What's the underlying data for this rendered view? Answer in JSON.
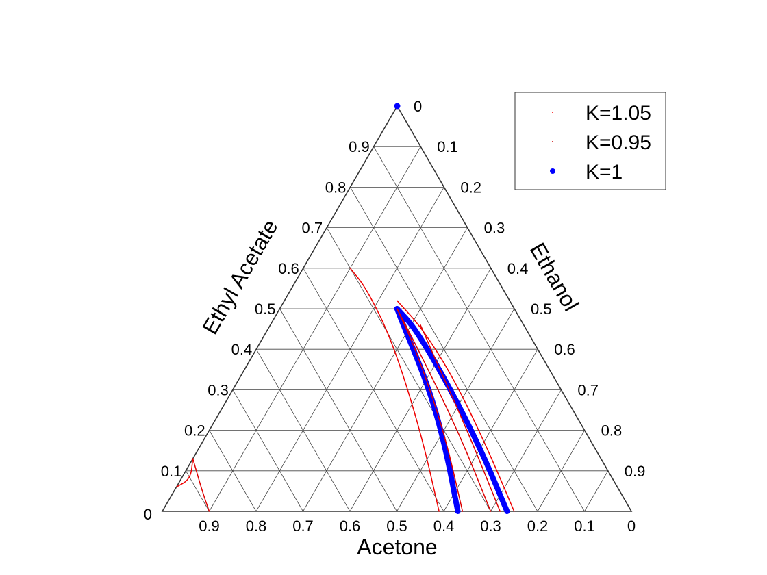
{
  "chart_data": {
    "type": "ternary",
    "axes": {
      "bottom": {
        "label": "Acetone",
        "ticks": [
          "0.9",
          "0.8",
          "0.7",
          "0.6",
          "0.5",
          "0.4",
          "0.3",
          "0.2",
          "0.1",
          "0"
        ]
      },
      "left": {
        "label": "Ethyl Acetate",
        "ticks": [
          "0.1",
          "0.2",
          "0.3",
          "0.4",
          "0.5",
          "0.6",
          "0.7",
          "0.8",
          "0.9"
        ]
      },
      "right": {
        "label": "Ethanol",
        "ticks": [
          "0",
          "0.1",
          "0.2",
          "0.3",
          "0.4",
          "0.5",
          "0.6",
          "0.7",
          "0.8",
          "0.9"
        ]
      },
      "origin_label": "0"
    },
    "grid": true,
    "legend": {
      "position": "top-right",
      "entries": [
        {
          "label": "K=1.05",
          "color": "#ff0000",
          "marker": "dot-small"
        },
        {
          "label": "K=0.95",
          "color": "#cc0000",
          "marker": "dot-small"
        },
        {
          "label": "K=1",
          "color": "#0000ff",
          "marker": "dot"
        }
      ]
    },
    "series": [
      {
        "name": "K=1",
        "color": "#0000ff",
        "width": 8,
        "points": [
          [
            0.37,
            0
          ],
          [
            0.32,
            0.15
          ],
          [
            0.28,
            0.3
          ],
          [
            0.255,
            0.47
          ],
          [
            0.25,
            0.5
          ]
        ]
      },
      {
        "name": "K=1",
        "color": "#0000ff",
        "width": 8,
        "points": [
          [
            0.265,
            0
          ],
          [
            0.245,
            0.15
          ],
          [
            0.235,
            0.3
          ],
          [
            0.235,
            0.45
          ],
          [
            0.25,
            0.5
          ]
        ]
      },
      {
        "name": "K=1",
        "color": "#0000ff",
        "width": 0,
        "marker": true,
        "points": [
          [
            0,
            1
          ]
        ]
      },
      {
        "name": "K=1.05",
        "color": "#ee0000",
        "width": 1.5,
        "points": [
          [
            0.41,
            0
          ],
          [
            0.35,
            0.2
          ],
          [
            0.3,
            0.42
          ],
          [
            0.29,
            0.55
          ],
          [
            0.3,
            0.6
          ]
        ]
      },
      {
        "name": "K=1.05",
        "color": "#ee0000",
        "width": 1.5,
        "points": [
          [
            0.25,
            0
          ],
          [
            0.23,
            0.15
          ],
          [
            0.215,
            0.32
          ],
          [
            0.22,
            0.45
          ],
          [
            0.24,
            0.52
          ]
        ]
      },
      {
        "name": "K=1.05",
        "color": "#ee0000",
        "width": 1.5,
        "points": [
          [
            0.94,
            0.06
          ],
          [
            0.9,
            0.08
          ],
          [
            0.87,
            0.13
          ]
        ]
      },
      {
        "name": "K=0.95",
        "color": "#dd0000",
        "width": 1.5,
        "points": [
          [
            0.36,
            0
          ],
          [
            0.3,
            0.2
          ],
          [
            0.26,
            0.4
          ],
          [
            0.25,
            0.5
          ]
        ]
      },
      {
        "name": "K=0.95",
        "color": "#dd0000",
        "width": 1.5,
        "points": [
          [
            0.3,
            0
          ],
          [
            0.27,
            0.2
          ],
          [
            0.255,
            0.4
          ],
          [
            0.25,
            0.5
          ]
        ]
      },
      {
        "name": "K=0.95",
        "color": "#dd0000",
        "width": 1.5,
        "points": [
          [
            0.28,
            0
          ],
          [
            0.25,
            0.2
          ],
          [
            0.23,
            0.38
          ],
          [
            0.22,
            0.46
          ]
        ]
      },
      {
        "name": "K=0.95",
        "color": "#dd0000",
        "width": 1.5,
        "points": [
          [
            0.9,
            0
          ],
          [
            0.89,
            0.05
          ],
          [
            0.87,
            0.13
          ]
        ]
      }
    ]
  }
}
